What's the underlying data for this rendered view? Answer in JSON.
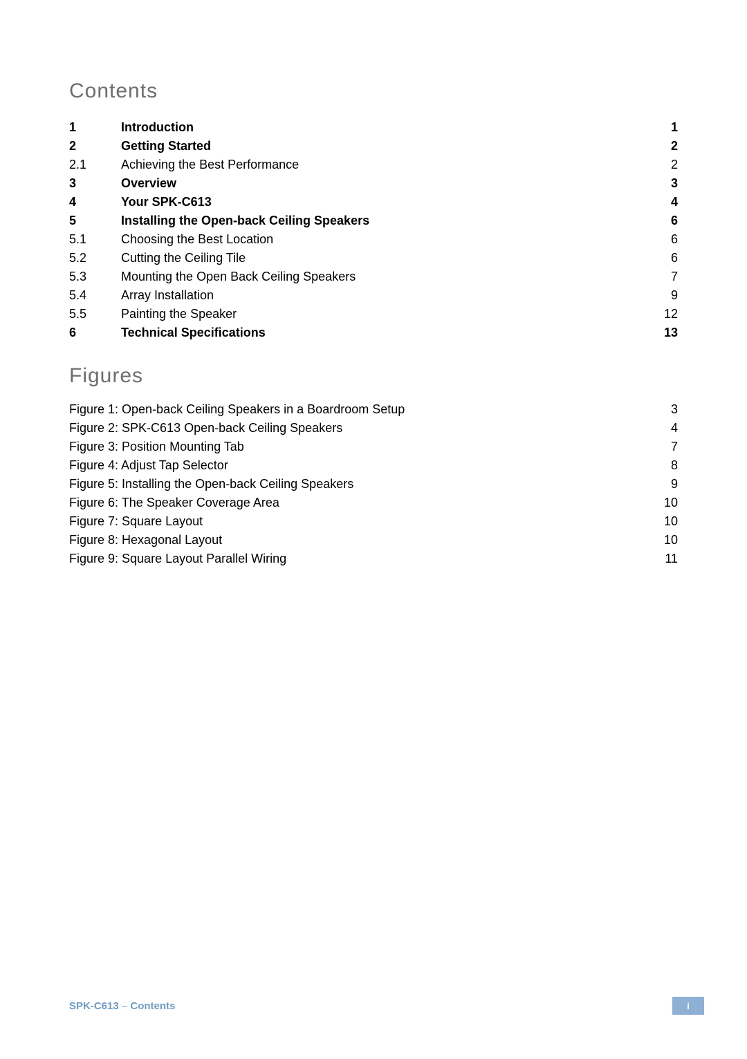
{
  "headings": {
    "contents": "Contents",
    "figures": "Figures"
  },
  "toc": [
    {
      "num": "1",
      "title": "Introduction",
      "page": "1",
      "bold": true
    },
    {
      "num": "2",
      "title": "Getting Started",
      "page": "2",
      "bold": true
    },
    {
      "num": "2.1",
      "title": "Achieving the Best Performance",
      "page": "2",
      "bold": false
    },
    {
      "num": "3",
      "title": "Overview",
      "page": "3",
      "bold": true
    },
    {
      "num": "4",
      "title": "Your SPK-C613",
      "page": "4",
      "bold": true
    },
    {
      "num": "5",
      "title": "Installing the Open-back Ceiling Speakers",
      "page": "6",
      "bold": true
    },
    {
      "num": "5.1",
      "title": "Choosing the Best Location",
      "page": "6",
      "bold": false
    },
    {
      "num": "5.2",
      "title": "Cutting the Ceiling Tile",
      "page": "6",
      "bold": false
    },
    {
      "num": "5.3",
      "title": "Mounting the Open Back Ceiling Speakers",
      "page": "7",
      "bold": false
    },
    {
      "num": "5.4",
      "title": "Array Installation",
      "page": "9",
      "bold": false
    },
    {
      "num": "5.5",
      "title": "Painting the Speaker",
      "page": "12",
      "bold": false
    },
    {
      "num": "6",
      "title": "Technical Specifications",
      "page": "13",
      "bold": true
    }
  ],
  "figures": [
    {
      "title": "Figure 1: Open-back Ceiling Speakers in a Boardroom Setup",
      "page": "3"
    },
    {
      "title": "Figure 2: SPK-C613 Open-back Ceiling Speakers",
      "page": "4"
    },
    {
      "title": "Figure 3: Position Mounting Tab",
      "page": "7"
    },
    {
      "title": "Figure 4: Adjust Tap Selector",
      "page": "8"
    },
    {
      "title": "Figure 5: Installing the Open-back Ceiling Speakers",
      "page": "9"
    },
    {
      "title": "Figure 6: The Speaker Coverage Area",
      "page": "10"
    },
    {
      "title": "Figure 7: Square Layout",
      "page": "10"
    },
    {
      "title": "Figure 8: Hexagonal Layout",
      "page": "10"
    },
    {
      "title": "Figure 9: Square Layout Parallel Wiring",
      "page": "11"
    }
  ],
  "footer": {
    "product": "SPK-C613",
    "separator": " –  ",
    "section": "Contents",
    "pageNumber": "i"
  },
  "colors": {
    "heading": "#6e6e6e",
    "text": "#000000",
    "footerText": "#6e9bc8",
    "badgeBg": "#8fb0d5",
    "badgeText": "#ffffff",
    "background": "#ffffff"
  },
  "typography": {
    "headingFontSize": 30,
    "bodyFontSize": 18,
    "footerFontSize": 15
  }
}
